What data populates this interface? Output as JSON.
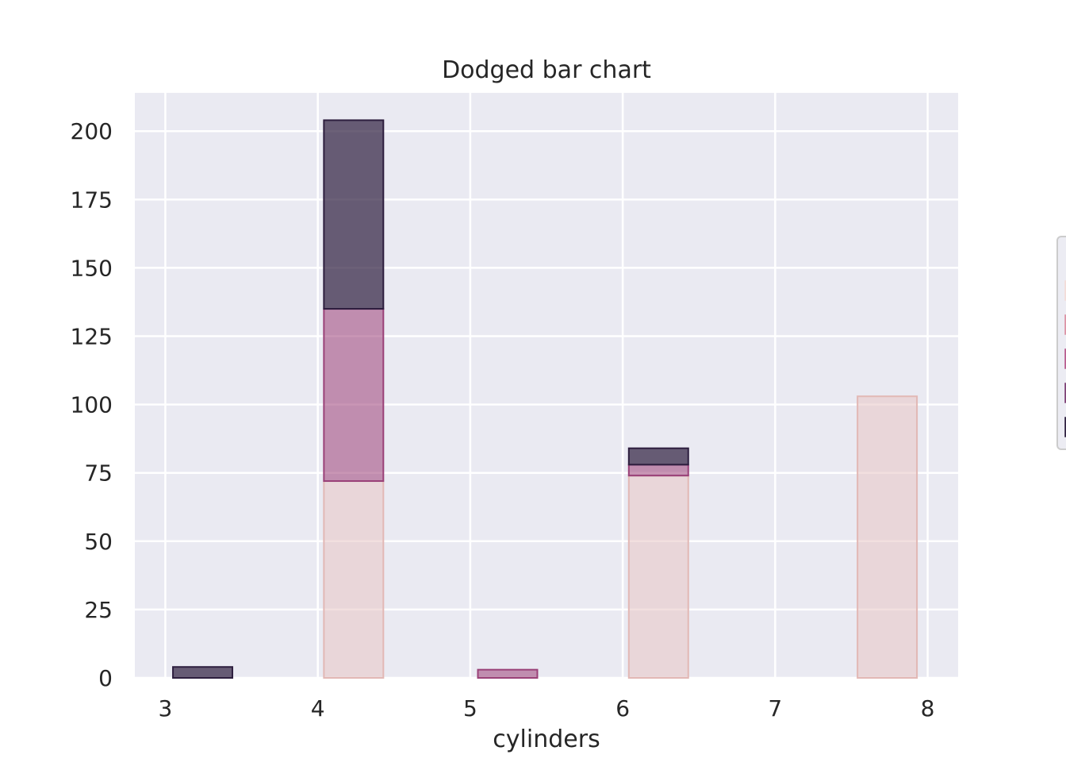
{
  "chart_data": {
    "type": "bar",
    "title": "Dodged bar chart",
    "xlabel": "cylinders",
    "ylabel": "",
    "xlim": [
      2.8,
      8.2
    ],
    "ylim": [
      0,
      214
    ],
    "x_ticks": [
      3,
      4,
      5,
      6,
      7,
      8
    ],
    "y_ticks": [
      0,
      25,
      50,
      75,
      100,
      125,
      150,
      175,
      200
    ],
    "grid": true,
    "legend_placement": "right, outside plot (cropped)",
    "colors": {
      "background": "#eaeaf2",
      "grid": "#ffffff",
      "text": "#262626",
      "legend_box": "#eaeaf2"
    },
    "bin_width": 0.39,
    "stacking": "layered",
    "series": [
      {
        "color": "#e8c4c4",
        "edge": "#e2b8b5",
        "opacity": 0.55,
        "values": [
          {
            "x_start": 4.04,
            "value": 72
          },
          {
            "x_start": 6.04,
            "value": 74
          },
          {
            "x_start": 7.54,
            "value": 103
          }
        ]
      },
      {
        "color": "#9c3f79",
        "edge": "#9a4178",
        "opacity": 0.55,
        "values": [
          {
            "x_start": 4.04,
            "value": 72,
            "value_top": 135
          },
          {
            "x_start": 5.05,
            "value": 0,
            "value_top": 3
          },
          {
            "x_start": 6.04,
            "value": 74,
            "value_top": 78
          }
        ]
      },
      {
        "color": "#2d1e3e",
        "edge": "#2d1e3e",
        "opacity": 0.7,
        "values": [
          {
            "x_start": 3.05,
            "value": 0,
            "value_top": 4
          },
          {
            "x_start": 4.04,
            "value": 135,
            "value_top": 204
          },
          {
            "x_start": 6.04,
            "value": 78,
            "value_top": 84
          }
        ]
      }
    ],
    "legend_swatches": [
      {
        "color": "#f3dcd8"
      },
      {
        "color": "#dc91a3"
      },
      {
        "color": "#b85a8d"
      },
      {
        "color": "#7d3e75"
      },
      {
        "color": "#2d1e3e"
      }
    ]
  }
}
